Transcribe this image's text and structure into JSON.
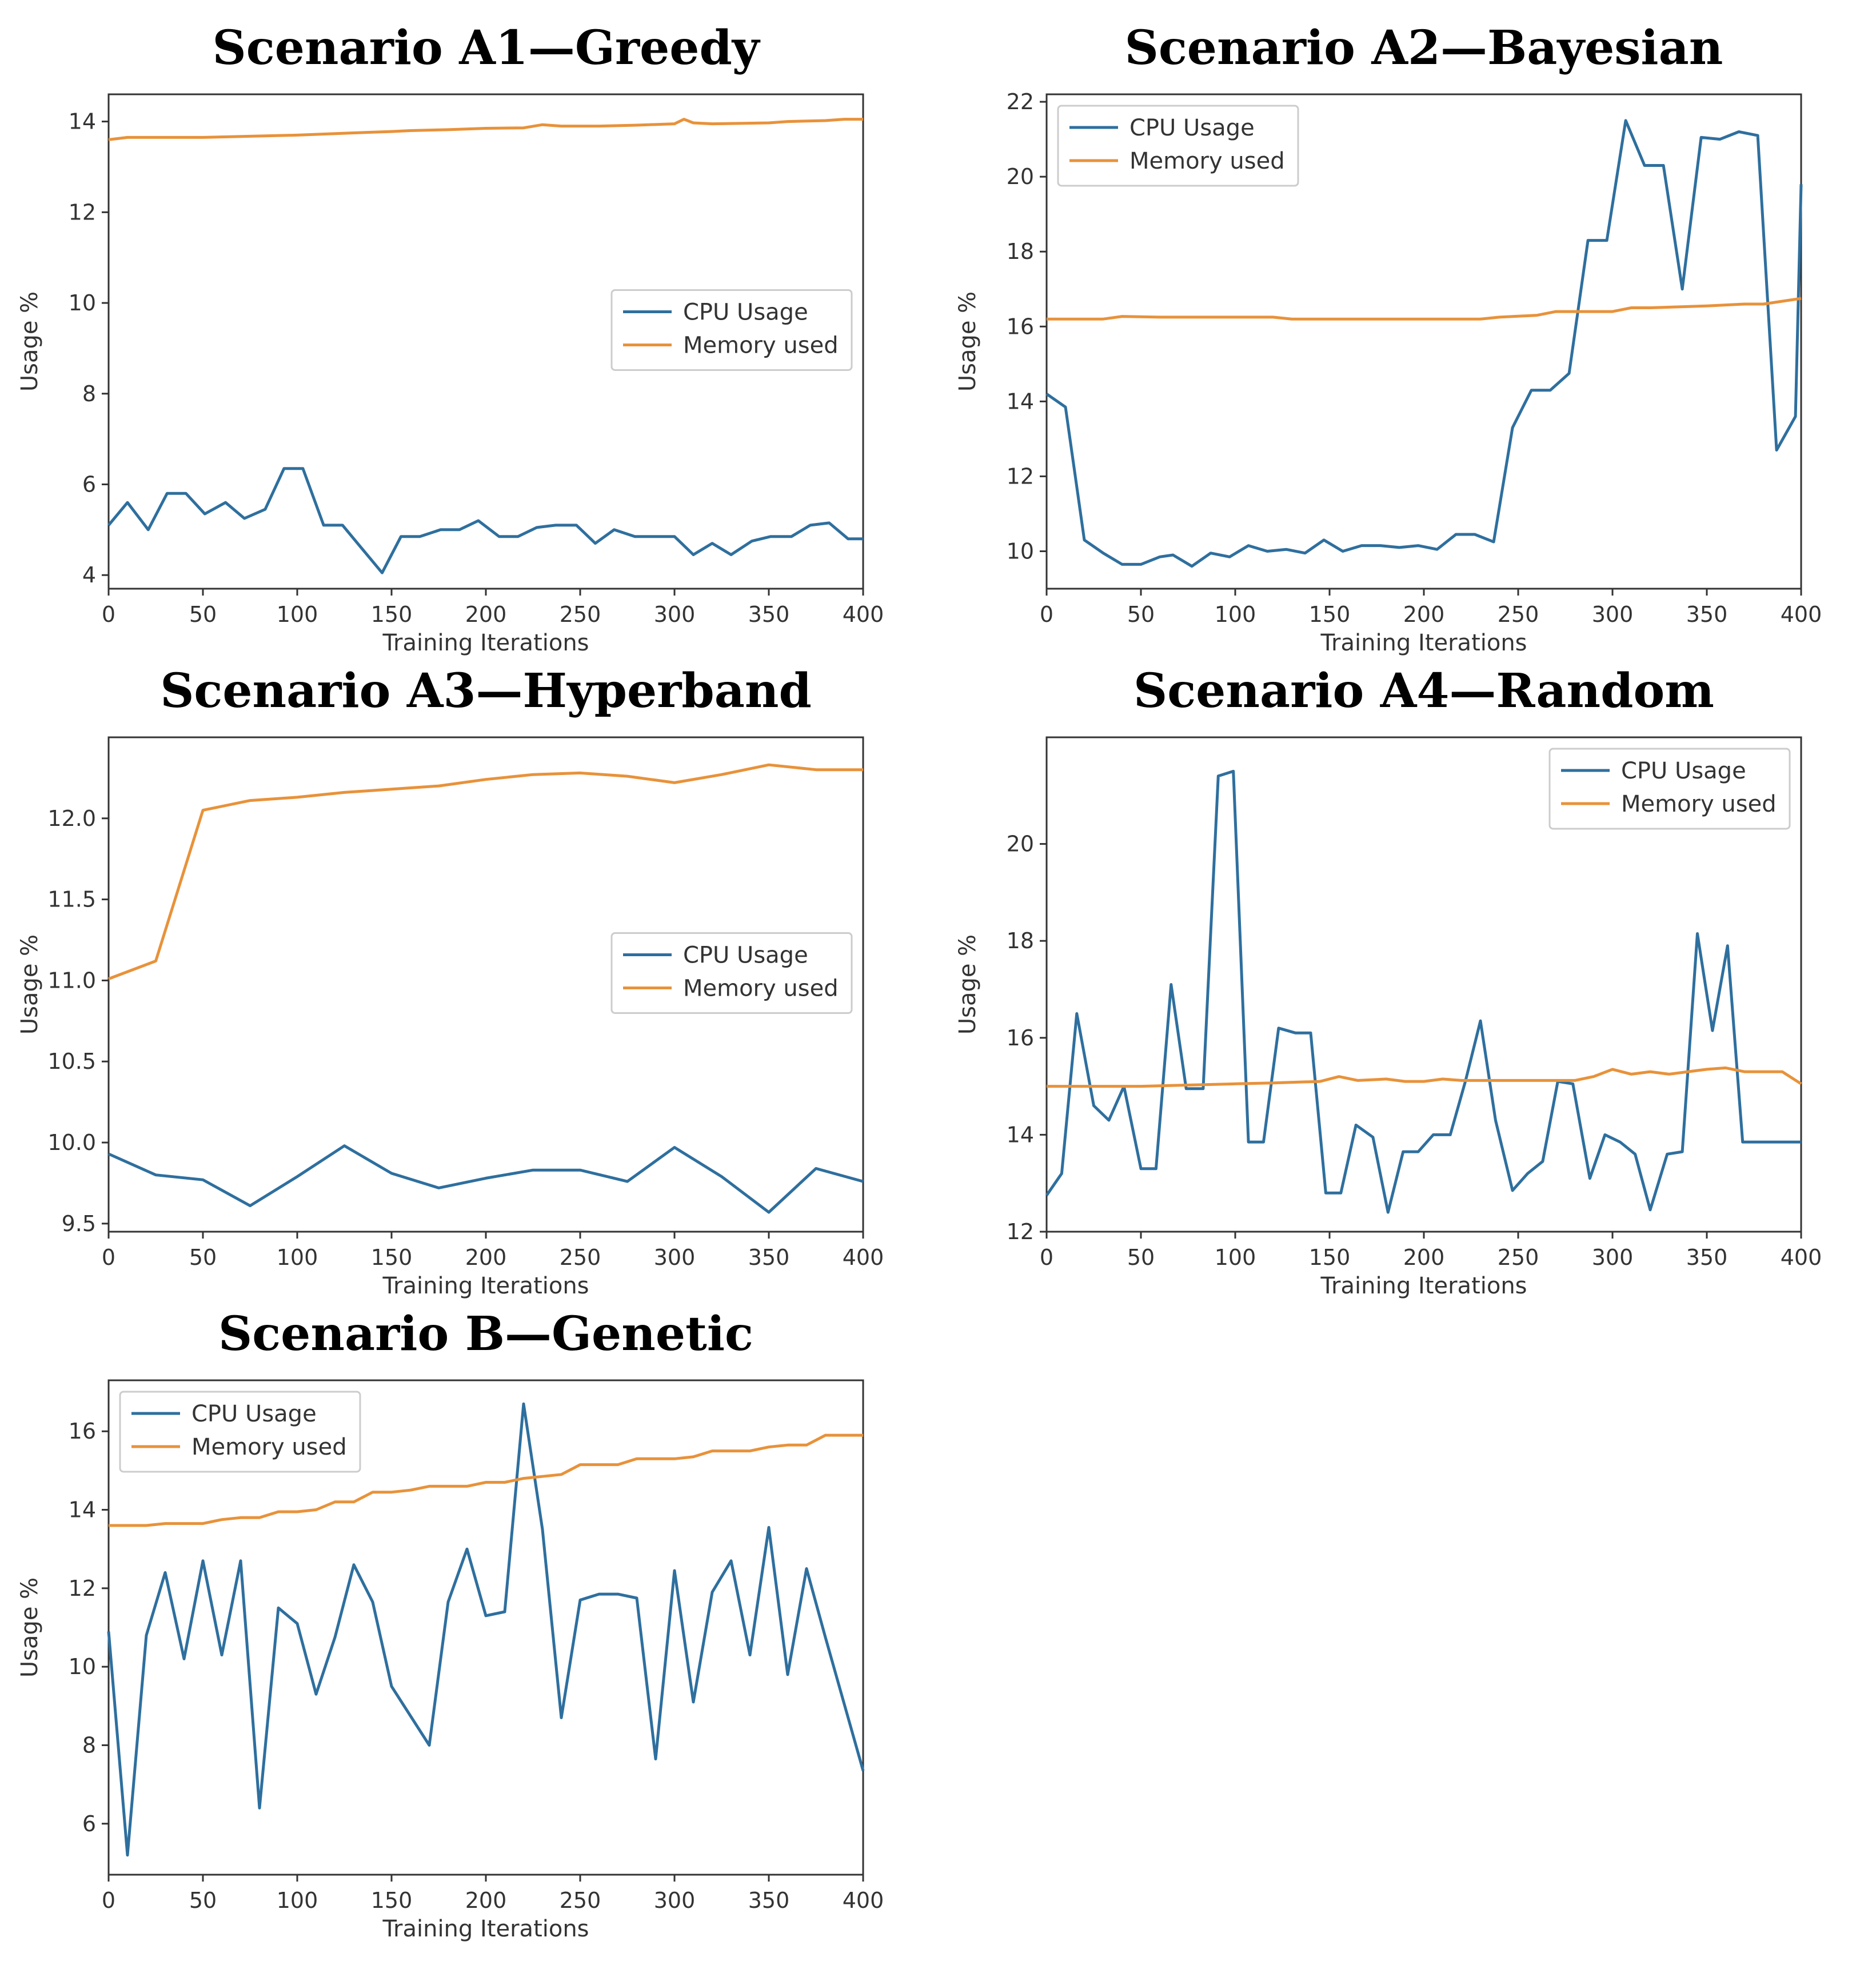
{
  "colors": {
    "cpu": "#2e6f9e",
    "memory": "#e8923a"
  },
  "chart_data": [
    {
      "type": "line",
      "title": "Scenario A1—Greedy",
      "xlabel": "Training Iterations",
      "ylabel": "Usage %",
      "xlim": [
        0,
        400
      ],
      "ylim": [
        3.7,
        14.6
      ],
      "xticks": [
        0,
        50,
        100,
        150,
        200,
        250,
        300,
        350,
        400
      ],
      "yticks": [
        4,
        6,
        8,
        10,
        12,
        14
      ],
      "legend_position": "center-right",
      "series": [
        {
          "name": "CPU Usage",
          "key": "cpu",
          "x": [
            0,
            10,
            21,
            31,
            41,
            51,
            62,
            72,
            83,
            93,
            103,
            114,
            124,
            134,
            145,
            155,
            165,
            176,
            186,
            196,
            207,
            217,
            227,
            237,
            248,
            258,
            268,
            279,
            289,
            300,
            310,
            320,
            330,
            341,
            351,
            362,
            372,
            382,
            392,
            400
          ],
          "values": [
            5.1,
            5.6,
            5.0,
            5.8,
            5.8,
            5.35,
            5.6,
            5.25,
            5.45,
            6.35,
            6.35,
            5.1,
            5.1,
            4.6,
            4.05,
            4.85,
            4.85,
            5.0,
            5.0,
            5.2,
            4.85,
            4.85,
            5.05,
            5.1,
            5.1,
            4.7,
            5.0,
            4.85,
            4.85,
            4.85,
            4.45,
            4.7,
            4.45,
            4.75,
            4.85,
            4.85,
            5.1,
            5.15,
            4.8,
            4.8
          ]
        },
        {
          "name": "Memory used",
          "key": "memory",
          "x": [
            0,
            10,
            50,
            100,
            130,
            150,
            160,
            180,
            200,
            220,
            230,
            240,
            260,
            280,
            300,
            305,
            310,
            320,
            350,
            360,
            380,
            390,
            400
          ],
          "values": [
            13.6,
            13.65,
            13.65,
            13.7,
            13.75,
            13.78,
            13.8,
            13.82,
            13.85,
            13.86,
            13.93,
            13.9,
            13.9,
            13.92,
            13.95,
            14.05,
            13.97,
            13.95,
            13.97,
            14.0,
            14.02,
            14.05,
            14.05
          ]
        }
      ]
    },
    {
      "type": "line",
      "title": "Scenario A2—Bayesian",
      "xlabel": "Training Iterations",
      "ylabel": "Usage %",
      "xlim": [
        0,
        400
      ],
      "ylim": [
        9.0,
        22.2
      ],
      "xticks": [
        0,
        50,
        100,
        150,
        200,
        250,
        300,
        350,
        400
      ],
      "yticks": [
        10,
        12,
        14,
        16,
        18,
        20,
        22
      ],
      "legend_position": "upper-left",
      "series": [
        {
          "name": "CPU Usage",
          "key": "cpu",
          "x": [
            0,
            10,
            20,
            30,
            40,
            50,
            60,
            67,
            77,
            87,
            97,
            107,
            117,
            127,
            137,
            147,
            157,
            167,
            177,
            187,
            197,
            207,
            217,
            227,
            237,
            247,
            257,
            267,
            277,
            287,
            297,
            307,
            317,
            327,
            337,
            347,
            357,
            367,
            377,
            387,
            397,
            400
          ],
          "values": [
            14.2,
            13.85,
            10.3,
            9.95,
            9.65,
            9.65,
            9.85,
            9.9,
            9.6,
            9.95,
            9.85,
            10.15,
            10.0,
            10.05,
            9.95,
            10.3,
            10.0,
            10.15,
            10.15,
            10.1,
            10.15,
            10.05,
            10.45,
            10.45,
            10.25,
            13.3,
            14.3,
            14.3,
            14.75,
            18.3,
            18.3,
            21.5,
            20.3,
            20.3,
            17.0,
            21.05,
            21.0,
            21.2,
            21.1,
            12.7,
            13.6,
            19.8
          ]
        },
        {
          "name": "Memory used",
          "key": "memory",
          "x": [
            0,
            30,
            40,
            60,
            120,
            130,
            230,
            240,
            260,
            270,
            300,
            310,
            320,
            350,
            370,
            380,
            400
          ],
          "values": [
            16.2,
            16.2,
            16.27,
            16.25,
            16.25,
            16.2,
            16.2,
            16.25,
            16.3,
            16.4,
            16.4,
            16.5,
            16.5,
            16.55,
            16.6,
            16.6,
            16.75
          ]
        }
      ]
    },
    {
      "type": "line",
      "title": "Scenario A3—Hyperband",
      "xlabel": "Training Iterations",
      "ylabel": "Usage %",
      "xlim": [
        0,
        400
      ],
      "ylim": [
        9.45,
        12.5
      ],
      "xticks": [
        0,
        50,
        100,
        150,
        200,
        250,
        300,
        350,
        400
      ],
      "yticks": [
        9.5,
        10.0,
        10.5,
        11.0,
        11.5,
        12.0
      ],
      "ytick_labels": [
        "9.5",
        "10.0",
        "10.5",
        "11.0",
        "11.5",
        "12.0"
      ],
      "legend_position": "center-right",
      "series": [
        {
          "name": "CPU Usage",
          "key": "cpu",
          "x": [
            0,
            25,
            50,
            75,
            100,
            125,
            150,
            175,
            200,
            225,
            250,
            275,
            300,
            325,
            350,
            375,
            400
          ],
          "values": [
            9.93,
            9.8,
            9.77,
            9.61,
            9.79,
            9.98,
            9.81,
            9.72,
            9.78,
            9.83,
            9.83,
            9.76,
            9.97,
            9.79,
            9.57,
            9.84,
            9.76
          ]
        },
        {
          "name": "Memory used",
          "key": "memory",
          "x": [
            0,
            25,
            50,
            75,
            100,
            125,
            150,
            175,
            200,
            225,
            250,
            275,
            300,
            325,
            350,
            375,
            400
          ],
          "values": [
            11.01,
            11.12,
            12.05,
            12.11,
            12.13,
            12.16,
            12.18,
            12.2,
            12.24,
            12.27,
            12.28,
            12.26,
            12.22,
            12.27,
            12.33,
            12.3,
            12.3
          ]
        }
      ]
    },
    {
      "type": "line",
      "title": "Scenario A4—Random",
      "xlabel": "Training Iterations",
      "ylabel": "Usage %",
      "xlim": [
        0,
        400
      ],
      "ylim": [
        12.0,
        22.2
      ],
      "xticks": [
        0,
        50,
        100,
        150,
        200,
        250,
        300,
        350,
        400
      ],
      "yticks": [
        12,
        14,
        16,
        18,
        20
      ],
      "legend_position": "upper-right",
      "series": [
        {
          "name": "CPU Usage",
          "key": "cpu",
          "x": [
            0,
            8,
            16,
            25,
            33,
            41,
            50,
            58,
            66,
            74,
            83,
            91,
            99,
            107,
            115,
            123,
            132,
            140,
            148,
            156,
            164,
            173,
            181,
            189,
            197,
            205,
            214,
            222,
            230,
            238,
            247,
            255,
            263,
            271,
            279,
            288,
            296,
            304,
            312,
            320,
            329,
            337,
            345,
            353,
            361,
            369,
            378,
            386,
            394,
            400
          ],
          "values": [
            12.75,
            13.2,
            16.5,
            14.6,
            14.3,
            15.0,
            13.3,
            13.3,
            17.1,
            14.95,
            14.95,
            21.4,
            21.5,
            13.85,
            13.85,
            16.2,
            16.1,
            16.1,
            12.8,
            12.8,
            14.2,
            13.95,
            12.4,
            13.65,
            13.65,
            14.0,
            14.0,
            15.1,
            16.35,
            14.3,
            12.85,
            13.2,
            13.45,
            15.1,
            15.05,
            13.1,
            14.0,
            13.85,
            13.6,
            12.45,
            13.6,
            13.65,
            18.15,
            16.15,
            17.9,
            13.85,
            13.85,
            13.85,
            13.85,
            13.85
          ]
        },
        {
          "name": "Memory used",
          "key": "memory",
          "x": [
            0,
            50,
            100,
            120,
            145,
            155,
            165,
            180,
            190,
            200,
            210,
            220,
            240,
            280,
            290,
            300,
            310,
            320,
            330,
            340,
            350,
            360,
            370,
            390,
            400
          ],
          "values": [
            15.0,
            15.0,
            15.05,
            15.07,
            15.1,
            15.2,
            15.12,
            15.15,
            15.1,
            15.1,
            15.15,
            15.12,
            15.12,
            15.12,
            15.2,
            15.35,
            15.25,
            15.3,
            15.25,
            15.3,
            15.35,
            15.38,
            15.3,
            15.3,
            15.05
          ]
        }
      ]
    },
    {
      "type": "line",
      "title": "Scenario B—Genetic",
      "xlabel": "Training Iterations",
      "ylabel": "Usage %",
      "xlim": [
        0,
        400
      ],
      "ylim": [
        4.7,
        17.3
      ],
      "xticks": [
        0,
        50,
        100,
        150,
        200,
        250,
        300,
        350,
        400
      ],
      "yticks": [
        6,
        8,
        10,
        12,
        14,
        16
      ],
      "legend_position": "upper-left",
      "series": [
        {
          "name": "CPU Usage",
          "key": "cpu",
          "x": [
            0,
            10,
            20,
            30,
            40,
            50,
            60,
            70,
            80,
            90,
            100,
            110,
            120,
            130,
            140,
            150,
            160,
            170,
            180,
            190,
            200,
            210,
            220,
            230,
            240,
            250,
            260,
            270,
            280,
            290,
            300,
            310,
            320,
            330,
            340,
            350,
            360,
            370,
            380,
            390,
            400
          ],
          "values": [
            10.9,
            5.2,
            10.8,
            12.4,
            10.2,
            12.7,
            10.3,
            12.7,
            6.4,
            11.5,
            11.1,
            9.3,
            10.75,
            12.6,
            11.65,
            9.5,
            8.75,
            8.0,
            11.65,
            13.0,
            11.3,
            11.4,
            16.7,
            13.5,
            8.7,
            11.7,
            11.85,
            11.85,
            11.75,
            7.65,
            12.45,
            9.1,
            11.9,
            12.7,
            10.3,
            13.55,
            9.8,
            12.5,
            10.75,
            9.05,
            7.35
          ]
        },
        {
          "name": "Memory used",
          "key": "memory",
          "x": [
            0,
            20,
            30,
            50,
            60,
            70,
            80,
            90,
            100,
            110,
            120,
            130,
            140,
            150,
            160,
            170,
            180,
            190,
            200,
            210,
            220,
            230,
            240,
            250,
            260,
            270,
            280,
            290,
            300,
            310,
            320,
            330,
            340,
            350,
            360,
            370,
            380,
            390,
            400
          ],
          "values": [
            13.6,
            13.6,
            13.65,
            13.65,
            13.75,
            13.8,
            13.8,
            13.95,
            13.95,
            14.0,
            14.2,
            14.2,
            14.45,
            14.45,
            14.5,
            14.6,
            14.6,
            14.6,
            14.7,
            14.7,
            14.8,
            14.85,
            14.9,
            15.15,
            15.15,
            15.15,
            15.3,
            15.3,
            15.3,
            15.35,
            15.5,
            15.5,
            15.5,
            15.6,
            15.65,
            15.65,
            15.9,
            15.9,
            15.9
          ]
        }
      ]
    }
  ]
}
